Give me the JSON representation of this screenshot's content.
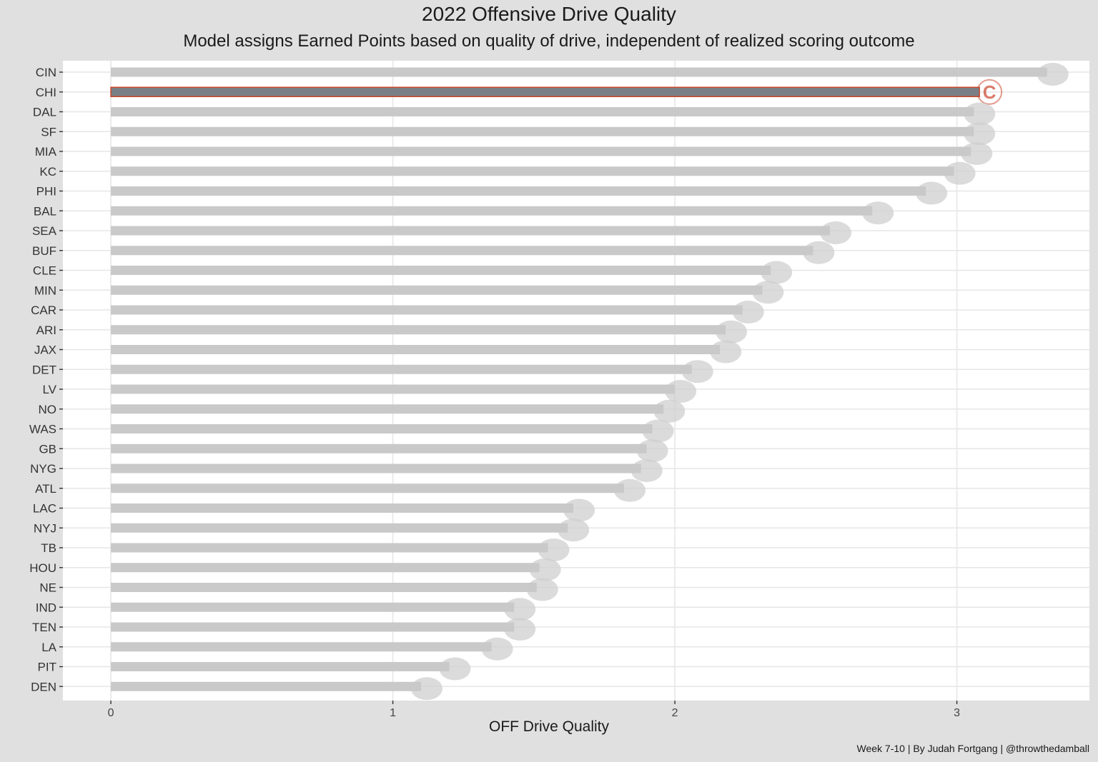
{
  "chart_data": {
    "type": "bar",
    "orientation": "horizontal",
    "title": "2022 Offensive Drive Quality",
    "subtitle": "Model assigns Earned Points based on quality of drive, independent of realized scoring outcome",
    "xlabel": "OFF Drive Quality",
    "ylabel": "",
    "xlim": [
      -0.17,
      3.47
    ],
    "x_ticks": [
      0,
      1,
      2,
      3
    ],
    "grid": true,
    "caption": "Week 7-10 | By Judah Fortgang | @throwthedamball",
    "highlight": "CHI",
    "colors": {
      "panel_bg": "#ffffff",
      "plot_bg": "#e0e0e0",
      "grid": "#e6e6e6",
      "bar_default": "#c9c9c9",
      "bar_highlight": "#7a7f86",
      "highlight_outline": "#c8462a",
      "logo_ghost": "#cfcfcf"
    },
    "categories": [
      "CIN",
      "CHI",
      "DAL",
      "SF",
      "MIA",
      "KC",
      "PHI",
      "BAL",
      "SEA",
      "BUF",
      "CLE",
      "MIN",
      "CAR",
      "ARI",
      "JAX",
      "DET",
      "LV",
      "NO",
      "WAS",
      "GB",
      "NYG",
      "ATL",
      "LAC",
      "NYJ",
      "TB",
      "HOU",
      "NE",
      "IND",
      "TEN",
      "LA",
      "PIT",
      "DEN"
    ],
    "values": [
      3.32,
      3.08,
      3.06,
      3.06,
      3.05,
      2.99,
      2.89,
      2.7,
      2.55,
      2.49,
      2.34,
      2.31,
      2.24,
      2.18,
      2.16,
      2.06,
      2.0,
      1.96,
      1.92,
      1.9,
      1.88,
      1.82,
      1.64,
      1.62,
      1.55,
      1.52,
      1.51,
      1.43,
      1.43,
      1.35,
      1.2,
      1.1
    ]
  }
}
